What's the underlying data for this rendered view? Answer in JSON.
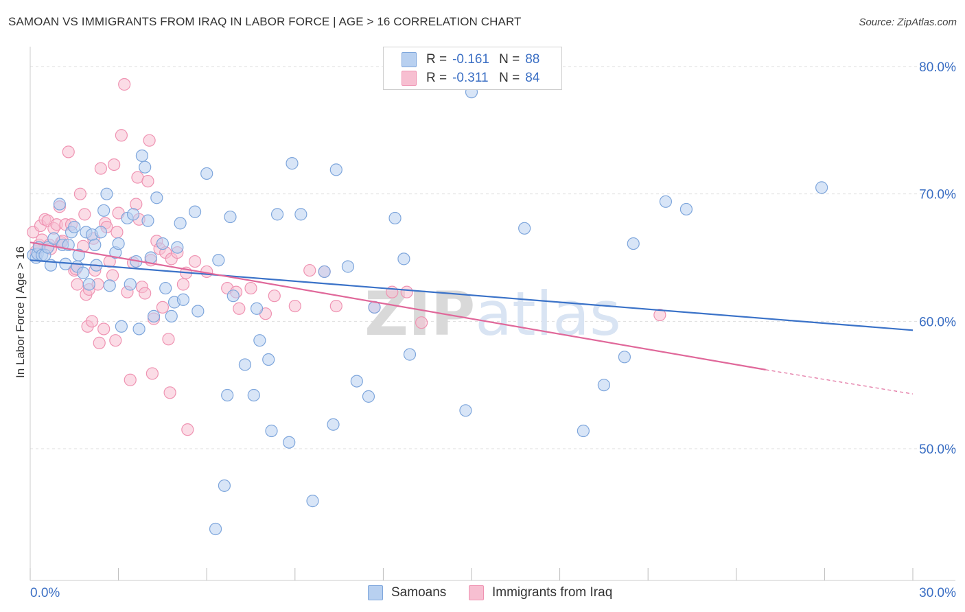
{
  "title": "SAMOAN VS IMMIGRANTS FROM IRAQ IN LABOR FORCE | AGE > 16 CORRELATION CHART",
  "source": "Source: ZipAtlas.com",
  "watermark": "ZIPatlas",
  "legend": {
    "rows": [
      {
        "r_label": "R =",
        "r_value": "-0.161",
        "n_label": "N =",
        "n_value": "88"
      },
      {
        "r_label": "R =",
        "r_value": "-0.311",
        "n_label": "N =",
        "n_value": "84"
      }
    ]
  },
  "bottom_legend": [
    "Samoans",
    "Immigrants from Iraq"
  ],
  "colors": {
    "samoans_fill": "#b8d0f0",
    "samoans_stroke": "#7ea6dc",
    "samoans_line": "#3a72c8",
    "iraq_fill": "#f7bfd1",
    "iraq_stroke": "#ef93b2",
    "iraq_line": "#e0689a",
    "axis_text": "#3b6fc4",
    "grid": "#dddddd"
  },
  "chart_data": {
    "type": "scatter",
    "title": "SAMOAN VS IMMIGRANTS FROM IRAQ IN LABOR FORCE | AGE > 16 CORRELATION CHART",
    "xlabel": "",
    "ylabel": "In Labor Force | Age > 16",
    "xlim": [
      0,
      30
    ],
    "ylim": [
      40,
      82
    ],
    "x_tick_labels": [
      "0.0%",
      "30.0%"
    ],
    "y_ticks": [
      50,
      60,
      70,
      80
    ],
    "y_tick_labels": [
      "50.0%",
      "60.0%",
      "70.0%",
      "80.0%"
    ],
    "series": [
      {
        "name": "Samoans",
        "r": -0.161,
        "n": 88,
        "trend": {
          "x0": 0,
          "y0": 64.8,
          "x1": 30,
          "y1": 59.3
        },
        "points": [
          [
            0.1,
            65.2
          ],
          [
            0.2,
            65.0
          ],
          [
            0.25,
            65.3
          ],
          [
            0.3,
            65.8
          ],
          [
            0.4,
            65.2
          ],
          [
            0.5,
            65.2
          ],
          [
            0.6,
            65.8
          ],
          [
            0.7,
            64.4
          ],
          [
            0.8,
            66.5
          ],
          [
            1.0,
            69.2
          ],
          [
            1.1,
            66.0
          ],
          [
            1.2,
            64.5
          ],
          [
            1.3,
            66.0
          ],
          [
            1.4,
            67.0
          ],
          [
            1.5,
            67.4
          ],
          [
            1.6,
            64.3
          ],
          [
            1.65,
            65.2
          ],
          [
            1.8,
            63.8
          ],
          [
            1.9,
            67.0
          ],
          [
            2.0,
            62.9
          ],
          [
            2.1,
            66.8
          ],
          [
            2.2,
            66.0
          ],
          [
            2.25,
            64.4
          ],
          [
            2.4,
            67.0
          ],
          [
            2.5,
            68.7
          ],
          [
            2.6,
            70.0
          ],
          [
            2.7,
            62.8
          ],
          [
            2.9,
            65.4
          ],
          [
            3.0,
            66.1
          ],
          [
            3.1,
            59.6
          ],
          [
            3.3,
            68.1
          ],
          [
            3.4,
            62.9
          ],
          [
            3.5,
            68.4
          ],
          [
            3.6,
            64.7
          ],
          [
            3.7,
            59.4
          ],
          [
            3.8,
            73.0
          ],
          [
            3.9,
            72.1
          ],
          [
            4.0,
            67.9
          ],
          [
            4.1,
            65.0
          ],
          [
            4.2,
            60.4
          ],
          [
            4.3,
            69.7
          ],
          [
            4.5,
            66.1
          ],
          [
            4.6,
            62.6
          ],
          [
            4.8,
            60.4
          ],
          [
            4.9,
            61.5
          ],
          [
            5.0,
            65.8
          ],
          [
            5.1,
            67.7
          ],
          [
            5.2,
            61.7
          ],
          [
            5.6,
            68.6
          ],
          [
            5.7,
            60.8
          ],
          [
            6.0,
            71.6
          ],
          [
            6.3,
            43.7
          ],
          [
            6.4,
            64.8
          ],
          [
            6.6,
            47.1
          ],
          [
            6.7,
            54.2
          ],
          [
            6.8,
            68.2
          ],
          [
            6.9,
            62.0
          ],
          [
            7.3,
            56.6
          ],
          [
            7.6,
            54.2
          ],
          [
            7.7,
            61.0
          ],
          [
            7.8,
            58.5
          ],
          [
            8.1,
            57.0
          ],
          [
            8.2,
            51.4
          ],
          [
            8.4,
            68.4
          ],
          [
            8.8,
            50.5
          ],
          [
            8.9,
            72.4
          ],
          [
            9.2,
            68.4
          ],
          [
            9.6,
            45.9
          ],
          [
            10.0,
            63.9
          ],
          [
            10.3,
            51.9
          ],
          [
            10.4,
            71.9
          ],
          [
            10.8,
            64.3
          ],
          [
            11.1,
            55.3
          ],
          [
            11.5,
            54.1
          ],
          [
            11.7,
            61.1
          ],
          [
            12.4,
            68.1
          ],
          [
            12.7,
            64.9
          ],
          [
            12.9,
            57.4
          ],
          [
            14.8,
            53.0
          ],
          [
            15.0,
            78.0
          ],
          [
            16.8,
            67.3
          ],
          [
            18.8,
            51.4
          ],
          [
            19.5,
            55.0
          ],
          [
            20.2,
            57.2
          ],
          [
            20.5,
            66.1
          ],
          [
            21.6,
            69.4
          ],
          [
            22.3,
            68.8
          ],
          [
            26.9,
            70.5
          ]
        ]
      },
      {
        "name": "Immigrants from Iraq",
        "r": -0.311,
        "n": 84,
        "trend": {
          "x0": 0,
          "y0": 66.2,
          "x1": 25,
          "y1": 56.2,
          "dash_x1": 30,
          "dash_y1": 54.3
        },
        "points": [
          [
            0.1,
            67.0
          ],
          [
            0.2,
            65.5
          ],
          [
            0.3,
            66.0
          ],
          [
            0.35,
            67.5
          ],
          [
            0.4,
            66.4
          ],
          [
            0.5,
            68.0
          ],
          [
            0.6,
            67.9
          ],
          [
            0.65,
            66.0
          ],
          [
            0.7,
            65.7
          ],
          [
            0.8,
            67.3
          ],
          [
            0.9,
            67.6
          ],
          [
            1.0,
            69.0
          ],
          [
            1.05,
            66.2
          ],
          [
            1.1,
            66.3
          ],
          [
            1.2,
            67.6
          ],
          [
            1.3,
            73.3
          ],
          [
            1.4,
            67.6
          ],
          [
            1.5,
            64.0
          ],
          [
            1.55,
            64.1
          ],
          [
            1.6,
            62.9
          ],
          [
            1.7,
            70.0
          ],
          [
            1.8,
            65.9
          ],
          [
            1.85,
            68.4
          ],
          [
            1.9,
            62.1
          ],
          [
            1.95,
            59.6
          ],
          [
            2.0,
            62.5
          ],
          [
            2.1,
            60.0
          ],
          [
            2.15,
            66.5
          ],
          [
            2.2,
            64.0
          ],
          [
            2.3,
            62.9
          ],
          [
            2.35,
            58.3
          ],
          [
            2.4,
            72.0
          ],
          [
            2.5,
            59.4
          ],
          [
            2.55,
            67.7
          ],
          [
            2.6,
            67.4
          ],
          [
            2.7,
            64.7
          ],
          [
            2.8,
            63.6
          ],
          [
            2.85,
            72.3
          ],
          [
            2.9,
            58.5
          ],
          [
            2.95,
            67.0
          ],
          [
            3.0,
            68.5
          ],
          [
            3.1,
            74.6
          ],
          [
            3.2,
            78.6
          ],
          [
            3.3,
            62.3
          ],
          [
            3.4,
            55.4
          ],
          [
            3.5,
            64.6
          ],
          [
            3.6,
            69.2
          ],
          [
            3.65,
            71.3
          ],
          [
            3.7,
            68.0
          ],
          [
            3.8,
            62.7
          ],
          [
            3.9,
            62.2
          ],
          [
            4.0,
            71.0
          ],
          [
            4.05,
            74.2
          ],
          [
            4.1,
            64.8
          ],
          [
            4.2,
            60.2
          ],
          [
            4.3,
            66.3
          ],
          [
            4.4,
            65.7
          ],
          [
            4.5,
            61.1
          ],
          [
            4.6,
            65.4
          ],
          [
            4.7,
            58.6
          ],
          [
            4.75,
            54.4
          ],
          [
            4.8,
            64.9
          ],
          [
            5.0,
            65.4
          ],
          [
            5.2,
            62.9
          ],
          [
            5.3,
            63.8
          ],
          [
            5.35,
            51.5
          ],
          [
            5.6,
            64.7
          ],
          [
            6.0,
            63.9
          ],
          [
            6.7,
            62.6
          ],
          [
            7.0,
            62.3
          ],
          [
            7.1,
            61.0
          ],
          [
            7.5,
            62.6
          ],
          [
            8.0,
            60.6
          ],
          [
            8.3,
            62.0
          ],
          [
            9.0,
            61.2
          ],
          [
            9.5,
            64.0
          ],
          [
            10.0,
            63.9
          ],
          [
            10.4,
            61.2
          ],
          [
            11.7,
            61.1
          ],
          [
            12.3,
            62.3
          ],
          [
            12.8,
            62.3
          ],
          [
            13.3,
            59.9
          ],
          [
            21.4,
            60.5
          ],
          [
            4.15,
            55.9
          ]
        ]
      }
    ]
  }
}
